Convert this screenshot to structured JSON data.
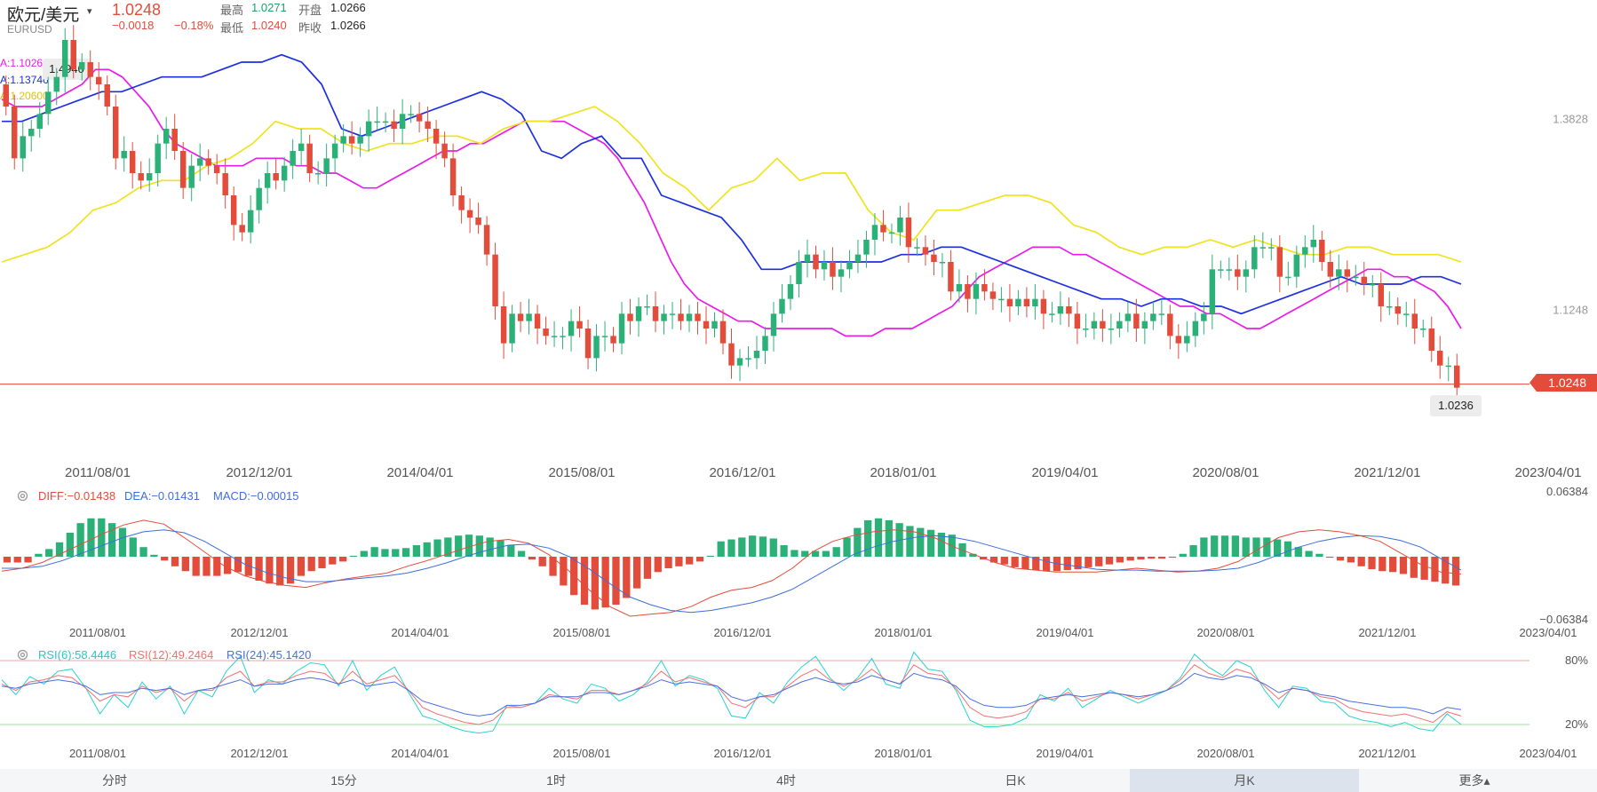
{
  "header": {
    "pair_name": "欧元/美元",
    "caret": "▾",
    "pair_code": "EURUSD",
    "last_price": "1.0248",
    "change": "−0.0018",
    "change_pct": "−0.18%",
    "stats": {
      "high_label": "最高",
      "high_value": "1.0271",
      "open_label": "开盘",
      "open_value": "1.0266",
      "low_label": "最低",
      "low_value": "1.0240",
      "prev_close_label": "昨收",
      "prev_close_value": "1.0266"
    }
  },
  "main_chart": {
    "ma_legend": [
      {
        "text": "A:1.10263",
        "color": "#e81ce8"
      },
      {
        "text": "A:1.13746",
        "color": "#1c2fe0"
      },
      {
        "text": "A:1.20600",
        "color": "#f0e21c"
      }
    ],
    "hover_value": "1.4940",
    "y_axis_labels": [
      "1.3828",
      "1.1248"
    ],
    "current_price_tag": "1.0248",
    "low_marker": "1.0236",
    "up_color": "#2bb178",
    "down_color": "#e34c3a"
  },
  "x_axis_labels": [
    "2011/08/01",
    "2012/12/01",
    "2014/04/01",
    "2015/08/01",
    "2016/12/01",
    "2018/01/01",
    "2019/04/01",
    "2020/08/01",
    "2021/12/01",
    "2023/04/01"
  ],
  "macd": {
    "diff_text": "DIFF:−0.01438",
    "dea_text": "DEA:−0.01431",
    "macd_text": "MACD:−0.00015",
    "diff_color": "#e34c3a",
    "dea_color": "#3c6ee0",
    "macd_color": "#3c6ee0",
    "axis_top": "0.06384",
    "axis_bottom": "−0.06384"
  },
  "rsi": {
    "rsi6_text": "RSI(6):58.4446",
    "rsi12_text": "RSI(12):49.2464",
    "rsi24_text": "RSI(24):45.1420",
    "rsi6_color": "#29d2d2",
    "rsi12_color": "#f36f6f",
    "rsi24_color": "#4a6fe0",
    "level_high": "80%",
    "level_low": "20%"
  },
  "tabs": [
    {
      "label": "分时",
      "active": false
    },
    {
      "label": "15分",
      "active": false
    },
    {
      "label": "1时",
      "active": false
    },
    {
      "label": "4时",
      "active": false
    },
    {
      "label": "日K",
      "active": false
    },
    {
      "label": "月K",
      "active": true
    },
    {
      "label": "更多▴",
      "active": false
    }
  ],
  "chart_data": {
    "type": "candlestick",
    "interval": "monthly",
    "symbol": "EURUSD",
    "x_labels": [
      "2011/08/01",
      "2012/12/01",
      "2014/04/01",
      "2015/08/01",
      "2016/12/01",
      "2018/01/01",
      "2019/04/01",
      "2020/08/01",
      "2021/12/01",
      "2023/04/01"
    ],
    "y_range": [
      0.98,
      1.52
    ],
    "closes": [
      1.4,
      1.33,
      1.36,
      1.37,
      1.39,
      1.42,
      1.44,
      1.49,
      1.45,
      1.46,
      1.44,
      1.43,
      1.4,
      1.33,
      1.34,
      1.31,
      1.3,
      1.31,
      1.35,
      1.37,
      1.34,
      1.29,
      1.32,
      1.33,
      1.32,
      1.31,
      1.28,
      1.24,
      1.23,
      1.26,
      1.29,
      1.31,
      1.3,
      1.32,
      1.34,
      1.35,
      1.31,
      1.31,
      1.33,
      1.35,
      1.36,
      1.35,
      1.36,
      1.38,
      1.38,
      1.38,
      1.37,
      1.39,
      1.39,
      1.38,
      1.37,
      1.35,
      1.33,
      1.28,
      1.26,
      1.25,
      1.24,
      1.2,
      1.13,
      1.08,
      1.12,
      1.11,
      1.12,
      1.1,
      1.09,
      1.09,
      1.09,
      1.11,
      1.1,
      1.06,
      1.09,
      1.09,
      1.08,
      1.12,
      1.11,
      1.13,
      1.13,
      1.11,
      1.12,
      1.12,
      1.11,
      1.12,
      1.11,
      1.1,
      1.11,
      1.08,
      1.05,
      1.06,
      1.06,
      1.07,
      1.09,
      1.12,
      1.14,
      1.16,
      1.19,
      1.2,
      1.18,
      1.19,
      1.17,
      1.18,
      1.19,
      1.2,
      1.22,
      1.24,
      1.23,
      1.23,
      1.25,
      1.21,
      1.21,
      1.2,
      1.19,
      1.19,
      1.15,
      1.16,
      1.14,
      1.16,
      1.15,
      1.14,
      1.14,
      1.13,
      1.14,
      1.13,
      1.14,
      1.12,
      1.12,
      1.13,
      1.12,
      1.1,
      1.1,
      1.11,
      1.1,
      1.1,
      1.11,
      1.12,
      1.1,
      1.11,
      1.12,
      1.12,
      1.09,
      1.08,
      1.09,
      1.11,
      1.12,
      1.18,
      1.18,
      1.18,
      1.17,
      1.18,
      1.21,
      1.21,
      1.21,
      1.17,
      1.17,
      1.2,
      1.21,
      1.22,
      1.19,
      1.17,
      1.18,
      1.17,
      1.17,
      1.16,
      1.16,
      1.13,
      1.13,
      1.12,
      1.12,
      1.1,
      1.1,
      1.07,
      1.05,
      1.05,
      1.02
    ],
    "ma_series": [
      {
        "name": "A:1.10263",
        "color": "#e81ce8",
        "values": [
          1.41,
          1.4,
          1.4,
          1.4,
          1.41,
          1.42,
          1.43,
          1.45,
          1.45,
          1.44,
          1.42,
          1.4,
          1.37,
          1.35,
          1.34,
          1.33,
          1.32,
          1.32,
          1.32,
          1.33,
          1.33,
          1.33,
          1.32,
          1.32,
          1.31,
          1.31,
          1.3,
          1.29,
          1.29,
          1.3,
          1.31,
          1.32,
          1.33,
          1.34,
          1.34,
          1.35,
          1.35,
          1.36,
          1.37,
          1.38,
          1.38,
          1.38,
          1.38,
          1.37,
          1.36,
          1.35,
          1.33,
          1.3,
          1.27,
          1.23,
          1.19,
          1.16,
          1.14,
          1.13,
          1.12,
          1.11,
          1.11,
          1.1,
          1.1,
          1.1,
          1.1,
          1.1,
          1.1,
          1.09,
          1.09,
          1.09,
          1.1,
          1.1,
          1.1,
          1.11,
          1.12,
          1.13,
          1.15,
          1.17,
          1.18,
          1.19,
          1.2,
          1.21,
          1.21,
          1.21,
          1.2,
          1.2,
          1.19,
          1.18,
          1.17,
          1.16,
          1.15,
          1.14,
          1.13,
          1.13,
          1.12,
          1.12,
          1.11,
          1.1,
          1.1,
          1.11,
          1.12,
          1.13,
          1.14,
          1.15,
          1.16,
          1.17,
          1.18,
          1.18,
          1.17,
          1.17,
          1.16,
          1.15,
          1.13,
          1.1
        ]
      },
      {
        "name": "A:1.13746",
        "color": "#1c2fe0",
        "values": [
          1.38,
          1.38,
          1.39,
          1.4,
          1.41,
          1.42,
          1.42,
          1.43,
          1.44,
          1.44,
          1.44,
          1.45,
          1.46,
          1.46,
          1.47,
          1.46,
          1.43,
          1.37,
          1.36,
          1.37,
          1.38,
          1.39,
          1.4,
          1.41,
          1.42,
          1.41,
          1.39,
          1.34,
          1.33,
          1.35,
          1.36,
          1.33,
          1.33,
          1.28,
          1.27,
          1.26,
          1.25,
          1.22,
          1.18,
          1.18,
          1.19,
          1.19,
          1.19,
          1.19,
          1.19,
          1.2,
          1.2,
          1.21,
          1.21,
          1.2,
          1.19,
          1.18,
          1.17,
          1.16,
          1.15,
          1.14,
          1.14,
          1.13,
          1.14,
          1.14,
          1.13,
          1.13,
          1.12,
          1.13,
          1.14,
          1.15,
          1.16,
          1.17,
          1.16,
          1.16,
          1.16,
          1.17,
          1.17,
          1.16
        ]
      },
      {
        "name": "A:1.20600",
        "color": "#f0e21c",
        "values": [
          1.19,
          1.2,
          1.21,
          1.23,
          1.26,
          1.27,
          1.29,
          1.3,
          1.3,
          1.32,
          1.33,
          1.35,
          1.38,
          1.37,
          1.37,
          1.35,
          1.34,
          1.35,
          1.35,
          1.36,
          1.36,
          1.35,
          1.37,
          1.38,
          1.38,
          1.39,
          1.4,
          1.38,
          1.35,
          1.31,
          1.29,
          1.26,
          1.29,
          1.3,
          1.33,
          1.3,
          1.31,
          1.31,
          1.26,
          1.23,
          1.22,
          1.26,
          1.26,
          1.27,
          1.28,
          1.28,
          1.27,
          1.24,
          1.23,
          1.21,
          1.2,
          1.21,
          1.21,
          1.22,
          1.21,
          1.22,
          1.21,
          1.2,
          1.2,
          1.21,
          1.21,
          1.2,
          1.2,
          1.2,
          1.19
        ]
      }
    ],
    "current_price": 1.0248,
    "low_marker": 1.0236,
    "macd_panel": {
      "range": [
        -0.06384,
        0.06384
      ],
      "hist": [
        -0.006,
        -0.006,
        -0.006,
        0.003,
        0.008,
        0.015,
        0.025,
        0.035,
        0.04,
        0.04,
        0.035,
        0.03,
        0.02,
        0.01,
        0.002,
        -0.004,
        -0.01,
        -0.015,
        -0.02,
        -0.02,
        -0.02,
        -0.018,
        -0.016,
        -0.02,
        -0.025,
        -0.028,
        -0.03,
        -0.028,
        -0.02,
        -0.015,
        -0.012,
        -0.008,
        -0.005,
        0.001,
        0.006,
        0.01,
        0.008,
        0.008,
        0.009,
        0.012,
        0.015,
        0.018,
        0.02,
        0.022,
        0.023,
        0.022,
        0.02,
        0.017,
        0.012,
        0.006,
        -0.003,
        -0.01,
        -0.02,
        -0.03,
        -0.04,
        -0.05,
        -0.055,
        -0.053,
        -0.05,
        -0.043,
        -0.033,
        -0.023,
        -0.016,
        -0.012,
        -0.01,
        -0.008,
        -0.005,
        0.001,
        0.016,
        0.018,
        0.02,
        0.022,
        0.021,
        0.019,
        0.012,
        0.007,
        0.006,
        0.006,
        0.006,
        0.01,
        0.02,
        0.03,
        0.038,
        0.04,
        0.038,
        0.035,
        0.032,
        0.03,
        0.028,
        0.025,
        0.023,
        0.014,
        0.003,
        -0.003,
        -0.006,
        -0.008,
        -0.011,
        -0.013,
        -0.014,
        -0.015,
        -0.015,
        -0.014,
        -0.013,
        -0.011,
        -0.01,
        -0.008,
        -0.006,
        -0.004,
        -0.003,
        -0.002,
        -0.002,
        -0.001,
        0.003,
        0.012,
        0.02,
        0.022,
        0.022,
        0.022,
        0.02,
        0.02,
        0.02,
        0.018,
        0.016,
        0.01,
        0.006,
        0.003,
        -0.001,
        -0.004,
        -0.006,
        -0.01,
        -0.013,
        -0.015,
        -0.016,
        -0.018,
        -0.022,
        -0.024,
        -0.026,
        -0.028,
        -0.03
      ],
      "diff": [
        -0.015,
        -0.012,
        -0.006,
        0.004,
        0.014,
        0.024,
        0.033,
        0.038,
        0.034,
        0.02,
        0.005,
        -0.01,
        -0.02,
        -0.026,
        -0.03,
        -0.032,
        -0.027,
        -0.023,
        -0.02,
        -0.017,
        -0.01,
        -0.004,
        0.003,
        0.01,
        0.016,
        0.018,
        0.014,
        0.002,
        -0.015,
        -0.035,
        -0.052,
        -0.062,
        -0.06,
        -0.058,
        -0.052,
        -0.042,
        -0.035,
        -0.032,
        -0.025,
        -0.012,
        0.005,
        0.016,
        0.022,
        0.026,
        0.028,
        0.026,
        0.02,
        0.01,
        0.002,
        -0.006,
        -0.012,
        -0.014,
        -0.016,
        -0.016,
        -0.016,
        -0.014,
        -0.012,
        -0.014,
        -0.016,
        -0.015,
        -0.012,
        -0.005,
        0.008,
        0.02,
        0.026,
        0.028,
        0.026,
        0.022,
        0.016,
        0.004,
        -0.008,
        -0.016,
        -0.018
      ],
      "dea": [
        -0.012,
        -0.012,
        -0.01,
        -0.004,
        0.004,
        0.012,
        0.02,
        0.026,
        0.028,
        0.025,
        0.016,
        0.004,
        -0.008,
        -0.016,
        -0.022,
        -0.026,
        -0.026,
        -0.024,
        -0.022,
        -0.02,
        -0.017,
        -0.012,
        -0.006,
        0.001,
        0.007,
        0.012,
        0.013,
        0.009,
        0.0,
        -0.013,
        -0.028,
        -0.042,
        -0.05,
        -0.056,
        -0.058,
        -0.056,
        -0.052,
        -0.048,
        -0.042,
        -0.034,
        -0.022,
        -0.01,
        0.002,
        0.01,
        0.016,
        0.02,
        0.022,
        0.02,
        0.016,
        0.01,
        0.004,
        -0.002,
        -0.007,
        -0.01,
        -0.013,
        -0.014,
        -0.014,
        -0.015,
        -0.015,
        -0.015,
        -0.014,
        -0.012,
        -0.006,
        0.002,
        0.01,
        0.016,
        0.02,
        0.022,
        0.021,
        0.017,
        0.01,
        -0.002,
        -0.014
      ]
    },
    "rsi_panel": {
      "range": [
        0,
        100
      ],
      "levels": [
        80,
        20
      ],
      "rsi6": [
        62,
        48,
        65,
        58,
        70,
        72,
        54,
        30,
        48,
        36,
        60,
        44,
        56,
        30,
        52,
        46,
        70,
        84,
        50,
        62,
        58,
        70,
        78,
        76,
        56,
        80,
        52,
        66,
        74,
        50,
        28,
        24,
        18,
        14,
        12,
        14,
        38,
        36,
        40,
        54,
        44,
        40,
        58,
        54,
        42,
        48,
        60,
        80,
        56,
        66,
        62,
        54,
        28,
        26,
        50,
        40,
        60,
        74,
        84,
        64,
        52,
        64,
        82,
        58,
        54,
        88,
        72,
        70,
        52,
        24,
        18,
        18,
        20,
        26,
        48,
        42,
        54,
        36,
        44,
        52,
        46,
        40,
        46,
        52,
        64,
        86,
        74,
        66,
        80,
        74,
        52,
        36,
        56,
        54,
        42,
        40,
        28,
        24,
        22,
        18,
        22,
        16,
        14,
        30,
        20
      ],
      "rsi12": [
        58,
        52,
        60,
        62,
        66,
        64,
        54,
        42,
        48,
        46,
        56,
        50,
        54,
        42,
        52,
        52,
        64,
        70,
        56,
        60,
        60,
        66,
        70,
        68,
        58,
        70,
        58,
        62,
        66,
        52,
        36,
        30,
        26,
        22,
        20,
        24,
        36,
        36,
        40,
        48,
        46,
        44,
        52,
        52,
        48,
        52,
        58,
        70,
        60,
        64,
        60,
        56,
        40,
        36,
        46,
        46,
        56,
        66,
        72,
        62,
        56,
        62,
        72,
        62,
        58,
        76,
        68,
        66,
        54,
        36,
        28,
        26,
        28,
        32,
        44,
        44,
        50,
        42,
        46,
        50,
        48,
        44,
        48,
        52,
        62,
        76,
        68,
        64,
        72,
        68,
        56,
        44,
        54,
        52,
        46,
        44,
        36,
        32,
        30,
        28,
        30,
        26,
        22,
        32,
        28
      ],
      "rsi24": [
        56,
        54,
        58,
        60,
        62,
        60,
        56,
        48,
        50,
        50,
        54,
        52,
        54,
        48,
        52,
        54,
        58,
        62,
        56,
        58,
        58,
        62,
        64,
        62,
        58,
        62,
        56,
        58,
        60,
        52,
        42,
        38,
        34,
        30,
        28,
        30,
        38,
        38,
        40,
        46,
        46,
        46,
        50,
        50,
        48,
        52,
        56,
        62,
        58,
        60,
        58,
        56,
        46,
        42,
        46,
        48,
        54,
        60,
        64,
        60,
        58,
        60,
        66,
        62,
        58,
        68,
        64,
        62,
        56,
        44,
        38,
        36,
        36,
        38,
        44,
        46,
        48,
        46,
        48,
        50,
        48,
        46,
        48,
        52,
        58,
        68,
        64,
        62,
        66,
        64,
        58,
        50,
        54,
        52,
        48,
        46,
        42,
        40,
        38,
        36,
        36,
        34,
        30,
        36,
        34
      ]
    }
  }
}
